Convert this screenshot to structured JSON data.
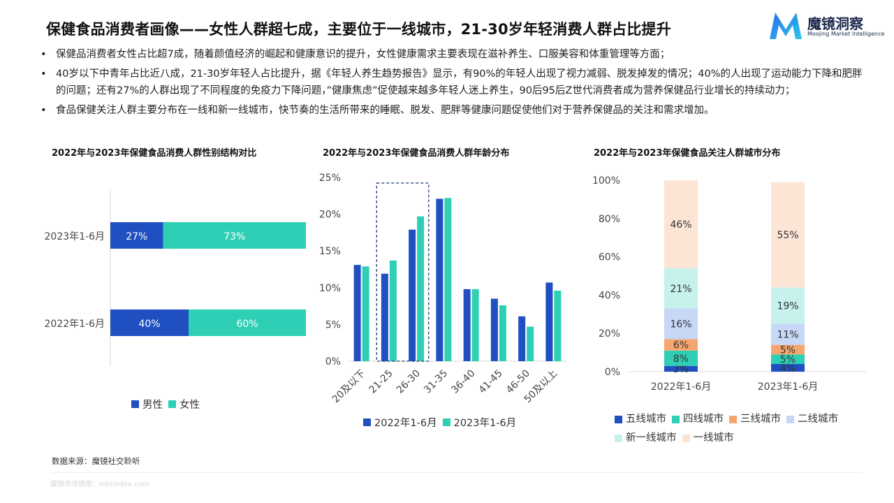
{
  "page": {
    "title": "保健食品消费者画像——女性人群超七成，主要位于一线城市，21-30岁年轻消费人群占比提升",
    "logo": {
      "name": "魔镜洞察",
      "subtitle": "Moojing Market Intelligence",
      "icon": "m-logo-icon",
      "colors": [
        "#2a6cf0",
        "#29c7e8"
      ]
    },
    "bullets": [
      "保健品消费者女性占比超7成，随着颜值经济的崛起和健康意识的提升，女性健康需求主要表现在滋补养生、口服美容和体重管理等方面；",
      "40岁以下中青年占比近八成，21-30岁年轻人占比提升，据《年轻人养生趋势报告》显示，有90%的年轻人出现了视力减弱、脱发掉发的情况；40%的人出现了运动能力下降和肥胖的问题；还有27%的人群出现了不同程度的免疫力下降问题，”健康焦虑”促使越来越多年轻人迷上养生，90后95后Z世代消费者成为营养保健品行业增长的持续动力；",
      "食品保健关注人群主要分布在一线和新一线城市，快节奏的生活所带来的睡眠、脱发、肥胖等健康问题促使他们对于营养保健品的关注和需求增加。"
    ],
    "source": "数据来源：魔镜社交聆听",
    "footer": "魔镜市场情报：mktindex.com"
  },
  "chart_data": [
    {
      "type": "bar",
      "orientation": "horizontal",
      "stacked": true,
      "title": "2022年与2023年保健食品消费人群性别结构对比",
      "categories": [
        "2023年1-6月",
        "2022年1-6月"
      ],
      "series": [
        {
          "name": "男性",
          "values": [
            27,
            40
          ],
          "labels": [
            "27%",
            "40%"
          ],
          "color": "#1f4fc1"
        },
        {
          "name": "女性",
          "values": [
            73,
            60
          ],
          "labels": [
            "73%",
            "60%"
          ],
          "color": "#2ecfb4"
        }
      ],
      "xlim": [
        0,
        100
      ],
      "legend": "bottom",
      "grid": false
    },
    {
      "type": "bar",
      "title": "2022年与2023年保健食品消费人群年龄分布",
      "categories": [
        "20及以下",
        "21-25",
        "26-30",
        "31-35",
        "36-40",
        "41-45",
        "46-50",
        "50及以上"
      ],
      "series": [
        {
          "name": "2022年1-6月",
          "values": [
            13.1,
            11.9,
            17.9,
            22.1,
            9.8,
            8.5,
            6.1,
            10.7
          ],
          "color": "#1f4fc1"
        },
        {
          "name": "2023年1-6月",
          "values": [
            12.9,
            13.7,
            19.7,
            22.2,
            9.8,
            7.6,
            4.7,
            9.6
          ],
          "color": "#2ecfb4"
        }
      ],
      "yticks": [
        "0%",
        "5%",
        "10%",
        "15%",
        "20%",
        "25%"
      ],
      "ylim": [
        0,
        25
      ],
      "highlight": [
        "21-25",
        "26-30"
      ],
      "legend": "bottom",
      "grid": false
    },
    {
      "type": "bar",
      "stacked": true,
      "title": "2022年与2023年保健食品关注人群城市分布",
      "categories": [
        "2022年1-6月",
        "2023年1-6月"
      ],
      "series": [
        {
          "name": "五线城市",
          "values": [
            3,
            4
          ],
          "labels": [
            "3%",
            "4%"
          ],
          "color": "#1f4fc1"
        },
        {
          "name": "四线城市",
          "values": [
            8,
            5
          ],
          "labels": [
            "8%",
            "5%"
          ],
          "color": "#2ecfb4"
        },
        {
          "name": "三线城市",
          "values": [
            6,
            5
          ],
          "labels": [
            "6%",
            "5%"
          ],
          "color": "#f5a66f"
        },
        {
          "name": "二线城市",
          "values": [
            16,
            11
          ],
          "labels": [
            "16%",
            "11%"
          ],
          "color": "#c7d7f6"
        },
        {
          "name": "新一线城市",
          "values": [
            21,
            19
          ],
          "labels": [
            "21%",
            "19%"
          ],
          "color": "#c6f1ec"
        },
        {
          "name": "一线城市",
          "values": [
            46,
            55
          ],
          "labels": [
            "46%",
            "55%"
          ],
          "color": "#fde5d6"
        }
      ],
      "yticks": [
        "0%",
        "20%",
        "40%",
        "60%",
        "80%",
        "100%"
      ],
      "ylim": [
        0,
        100
      ],
      "legend": "bottom",
      "grid": false
    }
  ]
}
